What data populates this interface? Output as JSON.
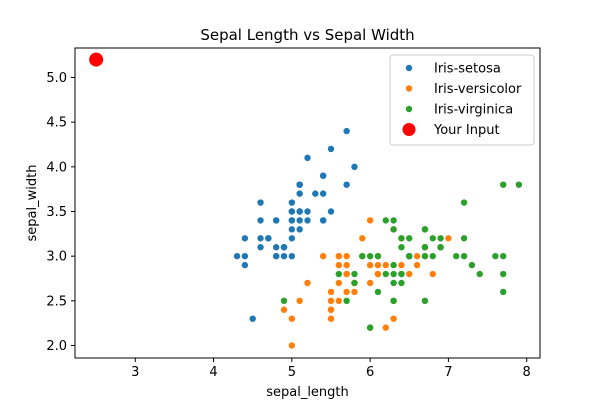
{
  "chart_data": {
    "type": "scatter",
    "title": "Sepal Length vs Sepal Width",
    "xlabel": "sepal_length",
    "ylabel": "sepal_width",
    "xlim": [
      2.23,
      8.17
    ],
    "ylim": [
      1.86,
      5.33
    ],
    "xticks": [
      3,
      4,
      5,
      6,
      7,
      8
    ],
    "yticks": [
      2.0,
      2.5,
      3.0,
      3.5,
      4.0,
      4.5,
      5.0
    ],
    "ytick_labels": [
      "2.0",
      "2.5",
      "3.0",
      "3.5",
      "4.0",
      "4.5",
      "5.0"
    ],
    "grid": false,
    "legend": "top-right",
    "series": [
      {
        "name": "Iris-setosa",
        "color": "#1f77b4",
        "points": [
          [
            5.1,
            3.5
          ],
          [
            4.9,
            3.0
          ],
          [
            4.7,
            3.2
          ],
          [
            4.6,
            3.1
          ],
          [
            5.0,
            3.6
          ],
          [
            5.4,
            3.9
          ],
          [
            4.6,
            3.4
          ],
          [
            5.0,
            3.4
          ],
          [
            4.4,
            2.9
          ],
          [
            4.9,
            3.1
          ],
          [
            5.4,
            3.7
          ],
          [
            4.8,
            3.4
          ],
          [
            4.8,
            3.0
          ],
          [
            4.3,
            3.0
          ],
          [
            5.8,
            4.0
          ],
          [
            5.7,
            4.4
          ],
          [
            5.4,
            3.9
          ],
          [
            5.1,
            3.5
          ],
          [
            5.7,
            3.8
          ],
          [
            5.1,
            3.8
          ],
          [
            5.4,
            3.4
          ],
          [
            5.1,
            3.7
          ],
          [
            4.6,
            3.6
          ],
          [
            5.1,
            3.3
          ],
          [
            4.8,
            3.4
          ],
          [
            5.0,
            3.0
          ],
          [
            5.0,
            3.4
          ],
          [
            5.2,
            3.5
          ],
          [
            5.2,
            3.4
          ],
          [
            4.7,
            3.2
          ],
          [
            4.8,
            3.1
          ],
          [
            5.4,
            3.4
          ],
          [
            5.2,
            4.1
          ],
          [
            5.5,
            4.2
          ],
          [
            4.9,
            3.1
          ],
          [
            5.0,
            3.2
          ],
          [
            5.5,
            3.5
          ],
          [
            4.9,
            3.1
          ],
          [
            4.4,
            3.0
          ],
          [
            5.1,
            3.4
          ],
          [
            5.0,
            3.5
          ],
          [
            4.5,
            2.3
          ],
          [
            4.4,
            3.2
          ],
          [
            5.0,
            3.5
          ],
          [
            5.1,
            3.8
          ],
          [
            4.8,
            3.0
          ],
          [
            5.1,
            3.8
          ],
          [
            4.6,
            3.2
          ],
          [
            5.3,
            3.7
          ],
          [
            5.0,
            3.3
          ]
        ]
      },
      {
        "name": "Iris-versicolor",
        "color": "#ff7f0e",
        "points": [
          [
            7.0,
            3.2
          ],
          [
            6.4,
            3.2
          ],
          [
            6.9,
            3.1
          ],
          [
            5.5,
            2.3
          ],
          [
            6.5,
            2.8
          ],
          [
            5.7,
            2.8
          ],
          [
            6.3,
            3.3
          ],
          [
            4.9,
            2.4
          ],
          [
            6.6,
            2.9
          ],
          [
            5.2,
            2.7
          ],
          [
            5.0,
            2.0
          ],
          [
            5.9,
            3.0
          ],
          [
            6.0,
            2.2
          ],
          [
            6.1,
            2.9
          ],
          [
            5.6,
            2.9
          ],
          [
            6.7,
            3.1
          ],
          [
            5.6,
            3.0
          ],
          [
            5.8,
            2.7
          ],
          [
            6.2,
            2.2
          ],
          [
            5.6,
            2.5
          ],
          [
            5.9,
            3.2
          ],
          [
            6.1,
            2.8
          ],
          [
            6.3,
            2.5
          ],
          [
            6.1,
            2.8
          ],
          [
            6.4,
            2.9
          ],
          [
            6.6,
            3.0
          ],
          [
            6.8,
            2.8
          ],
          [
            6.7,
            3.0
          ],
          [
            6.0,
            2.9
          ],
          [
            5.7,
            2.6
          ],
          [
            5.5,
            2.4
          ],
          [
            5.5,
            2.4
          ],
          [
            5.8,
            2.7
          ],
          [
            6.0,
            2.7
          ],
          [
            5.4,
            3.0
          ],
          [
            6.0,
            3.4
          ],
          [
            6.7,
            3.1
          ],
          [
            6.3,
            2.3
          ],
          [
            5.6,
            3.0
          ],
          [
            5.5,
            2.5
          ],
          [
            5.5,
            2.6
          ],
          [
            6.1,
            3.0
          ],
          [
            5.8,
            2.6
          ],
          [
            5.0,
            2.3
          ],
          [
            5.6,
            2.7
          ],
          [
            5.7,
            3.0
          ],
          [
            5.7,
            2.9
          ],
          [
            6.2,
            2.9
          ],
          [
            5.1,
            2.5
          ],
          [
            5.7,
            2.8
          ]
        ]
      },
      {
        "name": "Iris-virginica",
        "color": "#2ca02c",
        "points": [
          [
            6.3,
            3.3
          ],
          [
            5.8,
            2.7
          ],
          [
            7.1,
            3.0
          ],
          [
            6.3,
            2.9
          ],
          [
            6.5,
            3.0
          ],
          [
            7.6,
            3.0
          ],
          [
            4.9,
            2.5
          ],
          [
            7.3,
            2.9
          ],
          [
            6.7,
            2.5
          ],
          [
            7.2,
            3.6
          ],
          [
            6.5,
            3.2
          ],
          [
            6.4,
            2.7
          ],
          [
            6.8,
            3.0
          ],
          [
            5.7,
            2.5
          ],
          [
            5.8,
            2.8
          ],
          [
            6.4,
            3.2
          ],
          [
            6.5,
            3.0
          ],
          [
            7.7,
            3.8
          ],
          [
            7.7,
            2.6
          ],
          [
            6.0,
            2.2
          ],
          [
            6.9,
            3.2
          ],
          [
            5.6,
            2.8
          ],
          [
            7.7,
            2.8
          ],
          [
            6.3,
            2.7
          ],
          [
            6.7,
            3.3
          ],
          [
            7.2,
            3.2
          ],
          [
            6.2,
            2.8
          ],
          [
            6.1,
            3.0
          ],
          [
            6.4,
            2.8
          ],
          [
            7.2,
            3.0
          ],
          [
            7.4,
            2.8
          ],
          [
            7.9,
            3.8
          ],
          [
            6.4,
            2.8
          ],
          [
            6.3,
            2.8
          ],
          [
            6.1,
            2.6
          ],
          [
            7.7,
            3.0
          ],
          [
            6.3,
            3.4
          ],
          [
            6.4,
            3.1
          ],
          [
            6.0,
            3.0
          ],
          [
            6.9,
            3.1
          ],
          [
            6.7,
            3.1
          ],
          [
            6.9,
            3.1
          ],
          [
            6.8,
            3.2
          ],
          [
            6.7,
            3.3
          ],
          [
            6.7,
            3.0
          ],
          [
            6.3,
            2.5
          ],
          [
            6.5,
            3.0
          ],
          [
            6.2,
            3.4
          ],
          [
            5.9,
            3.0
          ]
        ]
      },
      {
        "name": "Your Input",
        "color": "#ff0000",
        "size": "large",
        "points": [
          [
            2.5,
            5.2
          ]
        ]
      }
    ]
  }
}
